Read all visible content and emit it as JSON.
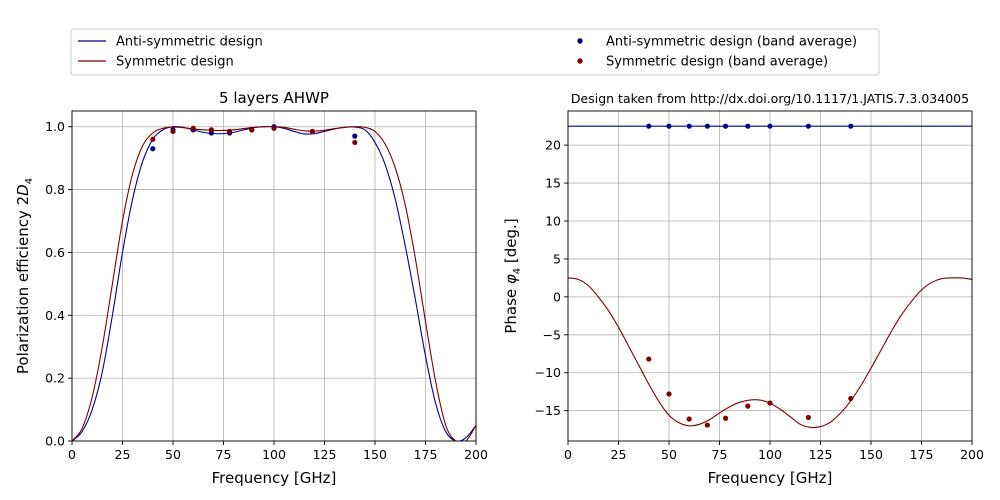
{
  "legend": {
    "items": [
      {
        "label": "Anti-symmetric design",
        "kind": "line",
        "color": "#00008b"
      },
      {
        "label": "Symmetric design",
        "kind": "line",
        "color": "#800000"
      },
      {
        "label": "Anti-symmetric design (band average)",
        "kind": "dot",
        "color": "#00008b"
      },
      {
        "label": "Symmetric design (band average)",
        "kind": "dot",
        "color": "#800000"
      }
    ]
  },
  "chart_data": [
    {
      "type": "line",
      "title": "5 layers AHWP",
      "xlabel": "Frequency [GHz]",
      "ylabel_main": "Polarization efficiency 2",
      "ylabel_italic": "D",
      "ylabel_sub": "4",
      "xlim": [
        0,
        200
      ],
      "ylim": [
        0,
        1.05
      ],
      "xticks": [
        0,
        25,
        50,
        75,
        100,
        125,
        150,
        175,
        200
      ],
      "yticks": [
        "0.0",
        "0.2",
        "0.4",
        "0.6",
        "0.8",
        "1.0"
      ],
      "grid": true,
      "series": [
        {
          "color": "#00008b",
          "style": "line",
          "x": [
            0,
            5,
            10,
            15,
            20,
            25,
            30,
            35,
            40,
            45,
            50,
            55,
            60,
            65,
            70,
            75,
            80,
            85,
            90,
            95,
            100,
            105,
            110,
            115,
            120,
            125,
            130,
            135,
            140,
            145,
            150,
            155,
            160,
            165,
            170,
            175,
            180,
            185,
            190,
            195,
            200
          ],
          "y": [
            0.0,
            0.03,
            0.1,
            0.22,
            0.4,
            0.6,
            0.77,
            0.89,
            0.96,
            0.99,
            1.0,
            0.998,
            0.99,
            0.982,
            0.978,
            0.978,
            0.982,
            0.99,
            0.997,
            1.0,
            1.0,
            0.995,
            0.985,
            0.977,
            0.978,
            0.985,
            0.993,
            0.998,
            0.999,
            0.99,
            0.95,
            0.88,
            0.77,
            0.62,
            0.45,
            0.27,
            0.12,
            0.03,
            0.0,
            0.01,
            0.05
          ]
        },
        {
          "color": "#800000",
          "style": "line",
          "x": [
            0,
            5,
            10,
            15,
            20,
            25,
            30,
            35,
            40,
            45,
            50,
            55,
            60,
            65,
            70,
            75,
            80,
            85,
            90,
            95,
            100,
            105,
            110,
            115,
            120,
            125,
            130,
            135,
            140,
            145,
            150,
            155,
            160,
            165,
            170,
            175,
            180,
            185,
            190,
            195,
            200
          ],
          "y": [
            0.0,
            0.04,
            0.14,
            0.3,
            0.5,
            0.7,
            0.85,
            0.94,
            0.98,
            0.995,
            0.999,
            0.997,
            0.993,
            0.99,
            0.988,
            0.988,
            0.99,
            0.994,
            0.998,
            1.0,
            1.0,
            0.998,
            0.992,
            0.987,
            0.986,
            0.989,
            0.994,
            0.998,
            1.0,
            0.998,
            0.985,
            0.945,
            0.87,
            0.75,
            0.58,
            0.38,
            0.19,
            0.05,
            0.0,
            0.0,
            0.05
          ]
        },
        {
          "color": "#00008b",
          "style": "dots",
          "x": [
            40,
            50,
            60,
            69,
            78,
            89,
            100,
            119,
            140
          ],
          "y": [
            0.93,
            0.99,
            0.99,
            0.98,
            0.98,
            0.99,
            1.0,
            0.985,
            0.97
          ]
        },
        {
          "color": "#800000",
          "style": "dots",
          "x": [
            40,
            50,
            60,
            69,
            78,
            89,
            100,
            119,
            140
          ],
          "y": [
            0.96,
            0.985,
            0.995,
            0.99,
            0.985,
            0.99,
            0.995,
            0.985,
            0.95
          ]
        }
      ]
    },
    {
      "type": "line",
      "title": "Design taken from http://dx.doi.org/10.1117/1.JATIS.7.3.034005",
      "xlabel": "Frequency [GHz]",
      "ylabel_main": "Phase ",
      "ylabel_italic": "φ",
      "ylabel_sub": "4",
      "ylabel_tail": " [deg.]",
      "xlim": [
        0,
        200
      ],
      "ylim": [
        -19,
        24.5
      ],
      "xticks": [
        0,
        25,
        50,
        75,
        100,
        125,
        150,
        175,
        200
      ],
      "yticks": [
        20,
        15,
        10,
        5,
        0,
        -5,
        -10,
        -15
      ],
      "grid": true,
      "series": [
        {
          "color": "#00008b",
          "style": "line",
          "x": [
            0,
            200
          ],
          "y": [
            22.5,
            22.5
          ]
        },
        {
          "color": "#800000",
          "style": "line",
          "x": [
            0,
            5,
            10,
            15,
            20,
            25,
            30,
            35,
            40,
            45,
            50,
            55,
            60,
            65,
            70,
            75,
            80,
            85,
            90,
            95,
            100,
            105,
            110,
            115,
            120,
            125,
            130,
            135,
            140,
            145,
            150,
            155,
            160,
            165,
            170,
            175,
            180,
            185,
            190,
            195,
            200
          ],
          "y": [
            2.5,
            2.3,
            1.5,
            0.0,
            -1.8,
            -4.0,
            -6.5,
            -9.0,
            -11.5,
            -13.8,
            -15.6,
            -16.6,
            -17.0,
            -16.8,
            -16.2,
            -15.3,
            -14.5,
            -13.9,
            -13.6,
            -13.6,
            -14.0,
            -14.8,
            -15.8,
            -16.8,
            -17.2,
            -17.1,
            -16.5,
            -15.3,
            -13.7,
            -11.7,
            -9.4,
            -7.0,
            -4.6,
            -2.4,
            -0.6,
            0.9,
            1.9,
            2.4,
            2.5,
            2.5,
            2.3
          ]
        },
        {
          "color": "#00008b",
          "style": "dots",
          "x": [
            40,
            50,
            60,
            69,
            78,
            89,
            100,
            119,
            140
          ],
          "y": [
            22.5,
            22.5,
            22.5,
            22.5,
            22.5,
            22.5,
            22.5,
            22.5,
            22.5
          ]
        },
        {
          "color": "#800000",
          "style": "dots",
          "x": [
            40,
            50,
            60,
            69,
            78,
            89,
            100,
            119,
            140
          ],
          "y": [
            -8.2,
            -12.8,
            -16.1,
            -16.9,
            -16.0,
            -14.4,
            -14.0,
            -15.9,
            -13.4
          ]
        }
      ]
    }
  ]
}
